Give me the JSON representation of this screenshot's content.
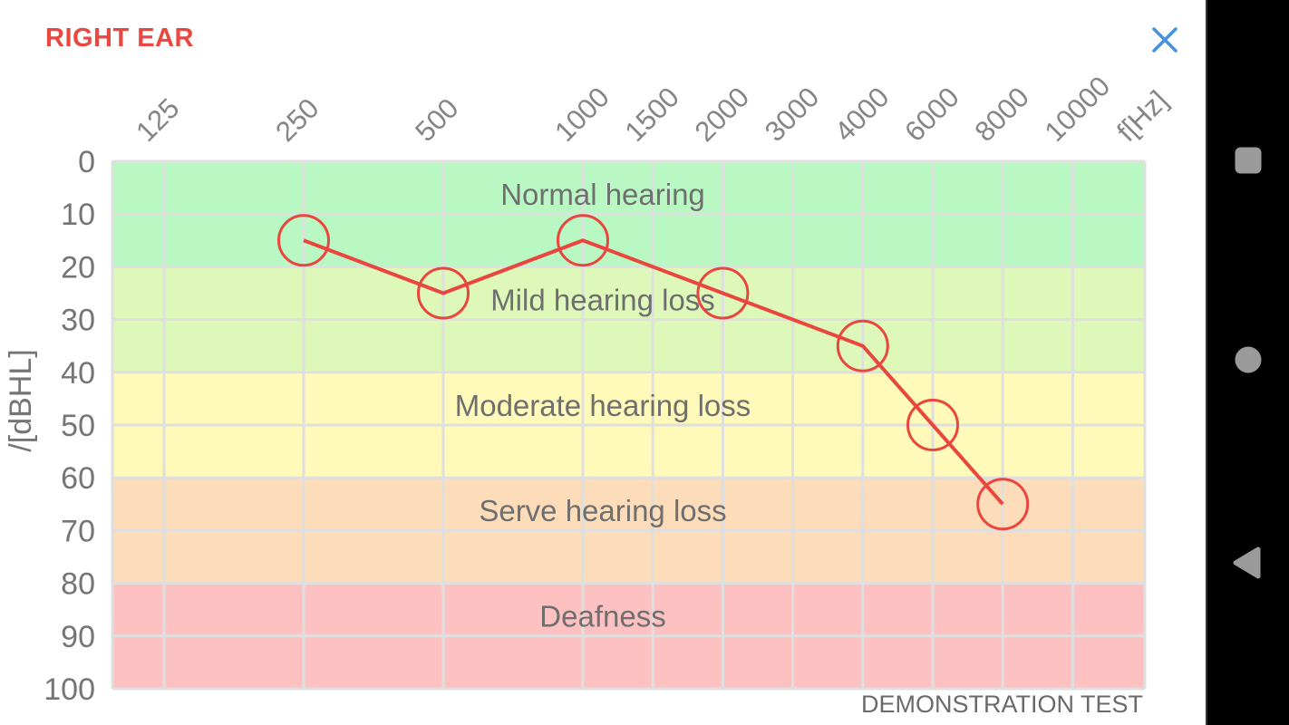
{
  "header": {
    "title": "RIGHT EAR",
    "title_color": "#e9473f",
    "close_icon": "close-icon",
    "close_icon_color": "#4793e0"
  },
  "chart_data": {
    "type": "line",
    "title": "RIGHT EAR",
    "xlabel": "f[Hz]",
    "ylabel": "/[dBHL]",
    "frequencies": [
      125,
      250,
      500,
      1000,
      1500,
      2000,
      3000,
      4000,
      6000,
      8000,
      10000
    ],
    "y_ticks": [
      0,
      10,
      20,
      30,
      40,
      50,
      60,
      70,
      80,
      90,
      100
    ],
    "ylim": [
      0,
      100
    ],
    "grid": true,
    "legend": false,
    "bands": [
      {
        "label": "Normal hearing",
        "from": 0,
        "to": 20,
        "color": "#b9f8c3"
      },
      {
        "label": "Mild hearing loss",
        "from": 20,
        "to": 40,
        "color": "#def8ba"
      },
      {
        "label": "Moderate hearing loss",
        "from": 40,
        "to": 60,
        "color": "#fffab9"
      },
      {
        "label": "Serve hearing loss",
        "from": 60,
        "to": 80,
        "color": "#fddcba"
      },
      {
        "label": "Deafness",
        "from": 80,
        "to": 100,
        "color": "#fdc1c1"
      }
    ],
    "series": [
      {
        "name": "right-ear-threshold",
        "color": "#e8463e",
        "marker": "circle",
        "points": [
          {
            "f": 250,
            "db": 15
          },
          {
            "f": 500,
            "db": 25
          },
          {
            "f": 1000,
            "db": 15
          },
          {
            "f": 2000,
            "db": 25
          },
          {
            "f": 4000,
            "db": 35
          },
          {
            "f": 6000,
            "db": 50
          },
          {
            "f": 8000,
            "db": 65
          }
        ]
      }
    ],
    "annotation": "DEMONSTRATION TEST",
    "axis_text_color": "#858585",
    "band_text_color": "#6f6f6f",
    "grid_color": "#dfdfdf"
  },
  "navbar": {
    "icons": [
      {
        "name": "recents-square-icon",
        "shape": "square"
      },
      {
        "name": "home-circle-icon",
        "shape": "circle"
      },
      {
        "name": "back-triangle-icon",
        "shape": "triangle"
      }
    ],
    "icon_color": "#9a9a9a",
    "background": "#000000"
  }
}
